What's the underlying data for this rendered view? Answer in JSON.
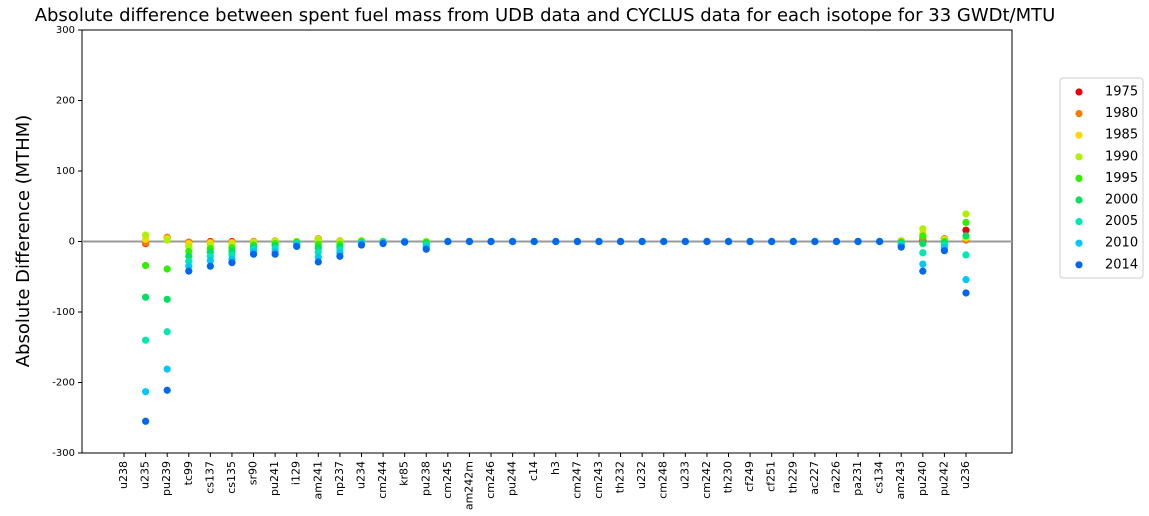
{
  "chart_data": {
    "type": "scatter",
    "title": "Absolute difference between spent fuel mass from UDB data and CYCLUS data for each isotope for 33 GWDt/MTU",
    "ylabel": "Absolute Difference (MTHM)",
    "categories": [
      "u238",
      "u235",
      "pu239",
      "tc99",
      "cs137",
      "cs135",
      "sr90",
      "pu241",
      "i129",
      "am241",
      "np237",
      "u234",
      "cm244",
      "kr85",
      "pu238",
      "cm245",
      "am242m",
      "cm246",
      "pu244",
      "c14",
      "h3",
      "cm247",
      "cm243",
      "th232",
      "u232",
      "cm248",
      "u233",
      "cm242",
      "th230",
      "cf249",
      "cf251",
      "th229",
      "ac227",
      "ra226",
      "pa231",
      "cs134",
      "am243",
      "pu240",
      "pu242",
      "u236"
    ],
    "ylim": [
      -300,
      300
    ],
    "yticks": [
      -300,
      -200,
      -100,
      0,
      100,
      200,
      300
    ],
    "hline": 0,
    "legend": "right",
    "series": [
      {
        "name": "1975",
        "color": "#e8000b",
        "values": [
          null,
          -3,
          5,
          -1,
          0,
          0,
          0,
          1,
          0,
          3,
          1,
          1,
          0,
          0,
          0,
          0,
          0,
          0,
          0,
          0,
          0,
          0,
          0,
          0,
          0,
          0,
          0,
          0,
          0,
          0,
          0,
          0,
          0,
          0,
          0,
          0,
          1,
          2,
          4,
          16
        ]
      },
      {
        "name": "1980",
        "color": "#f77a00",
        "values": [
          null,
          -2,
          6,
          -1,
          -1,
          -1,
          0,
          1,
          0,
          4,
          1,
          1,
          0,
          0,
          0,
          0,
          0,
          0,
          0,
          0,
          0,
          0,
          0,
          0,
          0,
          0,
          0,
          0,
          0,
          0,
          0,
          0,
          0,
          0,
          0,
          0,
          1,
          4,
          4,
          2
        ]
      },
      {
        "name": "1985",
        "color": "#ffd700",
        "values": [
          null,
          3,
          4,
          -3,
          -2,
          -2,
          -1,
          1,
          0,
          3,
          1,
          1,
          0,
          0,
          0,
          0,
          0,
          0,
          0,
          0,
          0,
          0,
          0,
          0,
          0,
          0,
          0,
          0,
          0,
          0,
          0,
          0,
          0,
          0,
          0,
          0,
          1,
          12,
          3,
          5
        ]
      },
      {
        "name": "1990",
        "color": "#b0f000",
        "values": [
          null,
          9,
          2,
          -7,
          -5,
          -4,
          -2,
          0,
          0,
          2,
          0,
          1,
          0,
          0,
          0,
          0,
          0,
          0,
          0,
          0,
          0,
          0,
          0,
          0,
          0,
          0,
          0,
          0,
          0,
          0,
          0,
          0,
          0,
          0,
          0,
          0,
          0,
          18,
          2,
          39
        ]
      },
      {
        "name": "1995",
        "color": "#30f000",
        "values": [
          null,
          -34,
          -39,
          -14,
          -10,
          -9,
          -5,
          -3,
          -1,
          -4,
          -4,
          0,
          0,
          0,
          -1,
          0,
          0,
          0,
          0,
          0,
          0,
          0,
          0,
          0,
          0,
          0,
          0,
          0,
          0,
          0,
          0,
          0,
          0,
          0,
          0,
          0,
          -1,
          8,
          0,
          27
        ]
      },
      {
        "name": "2000",
        "color": "#00e060",
        "values": [
          null,
          -79,
          -82,
          -21,
          -15,
          -14,
          -8,
          -6,
          -2,
          -9,
          -8,
          -1,
          -1,
          0,
          -3,
          0,
          0,
          0,
          0,
          0,
          0,
          0,
          0,
          0,
          0,
          0,
          0,
          0,
          0,
          0,
          0,
          0,
          0,
          0,
          0,
          0,
          -2,
          -3,
          -2,
          8
        ]
      },
      {
        "name": "2005",
        "color": "#00e8b0",
        "values": [
          null,
          -140,
          -128,
          -28,
          -21,
          -19,
          -11,
          -10,
          -3,
          -15,
          -12,
          -2,
          -1,
          0,
          -5,
          0,
          0,
          0,
          0,
          0,
          0,
          0,
          0,
          0,
          0,
          0,
          0,
          0,
          0,
          0,
          0,
          0,
          0,
          0,
          0,
          0,
          -4,
          -16,
          -5,
          -19
        ]
      },
      {
        "name": "2010",
        "color": "#00c8f8",
        "values": [
          null,
          -213,
          -181,
          -35,
          -27,
          -25,
          -14,
          -14,
          -5,
          -22,
          -16,
          -3,
          -2,
          0,
          -8,
          0,
          0,
          0,
          0,
          0,
          0,
          0,
          0,
          0,
          0,
          0,
          0,
          0,
          0,
          0,
          0,
          0,
          0,
          0,
          0,
          0,
          -6,
          -32,
          -9,
          -54
        ]
      },
      {
        "name": "2014",
        "color": "#0068f0",
        "values": [
          null,
          -255,
          -211,
          -42,
          -35,
          -30,
          -18,
          -18,
          -7,
          -29,
          -21,
          -5,
          -3,
          -1,
          -11,
          0,
          0,
          0,
          0,
          0,
          0,
          0,
          0,
          0,
          0,
          0,
          0,
          0,
          0,
          0,
          0,
          0,
          0,
          0,
          0,
          0,
          -8,
          -42,
          -13,
          -73
        ]
      }
    ]
  }
}
